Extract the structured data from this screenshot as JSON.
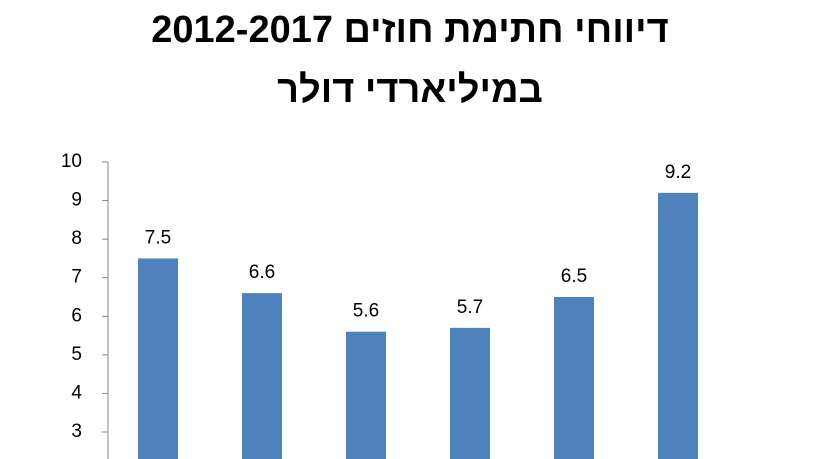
{
  "chart_data": {
    "type": "bar",
    "title": "דיווחי חתימת חוזים  2012-2017",
    "subtitle": "במיליארדי דולר",
    "categories": [
      null,
      null,
      null,
      null,
      null,
      null
    ],
    "values": [
      7.5,
      6.6,
      5.6,
      5.7,
      6.5,
      9.2
    ],
    "color": "#4f81bd",
    "ylim": [
      2.3,
      10
    ],
    "yticks": [
      3,
      4,
      5,
      6,
      7,
      8,
      9,
      10
    ],
    "grid": false
  }
}
